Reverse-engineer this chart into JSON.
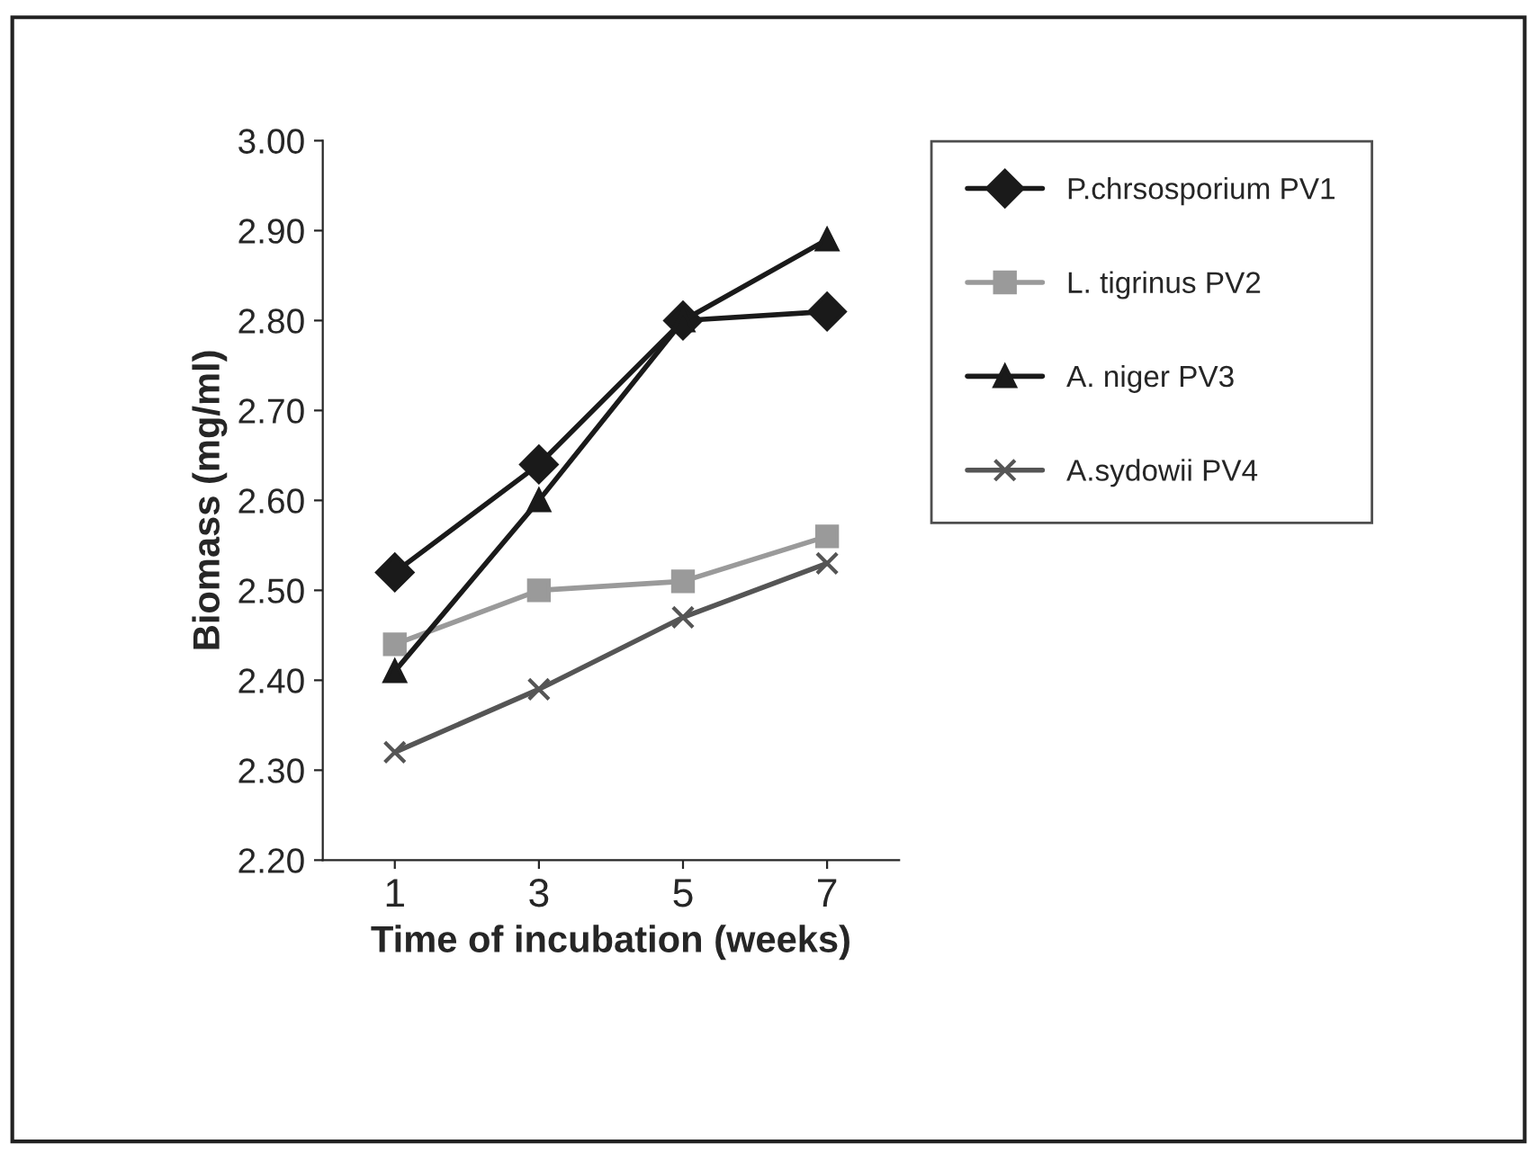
{
  "chart_data": {
    "type": "line",
    "xlabel": "Time of incubation (weeks)",
    "ylabel": "Biomass (mg/ml)",
    "categories": [
      "1",
      "3",
      "5",
      "7"
    ],
    "ylim": [
      2.2,
      3.0
    ],
    "yticks": [
      {
        "value": 2.2,
        "label": "2.20"
      },
      {
        "value": 2.3,
        "label": "2.30"
      },
      {
        "value": 2.4,
        "label": "2.40"
      },
      {
        "value": 2.5,
        "label": "2.50"
      },
      {
        "value": 2.6,
        "label": "2.60"
      },
      {
        "value": 2.7,
        "label": "2.70"
      },
      {
        "value": 2.8,
        "label": "2.80"
      },
      {
        "value": 2.9,
        "label": "2.90"
      },
      {
        "value": 3.0,
        "label": "3.00"
      }
    ],
    "grid": false,
    "legend": "right",
    "series": [
      {
        "name": "P.chrsosporium PV1",
        "color": "#1a1a1a",
        "marker": "diamond",
        "values": [
          2.52,
          2.64,
          2.8,
          2.81
        ]
      },
      {
        "name": "L. tigrinus PV2",
        "color": "#9a9a9a",
        "marker": "square",
        "values": [
          2.44,
          2.5,
          2.51,
          2.56
        ]
      },
      {
        "name": "A. niger PV3",
        "color": "#1a1a1a",
        "marker": "triangle",
        "values": [
          2.41,
          2.6,
          2.8,
          2.89
        ]
      },
      {
        "name": "A.sydowii PV4",
        "color": "#555555",
        "marker": "cross",
        "values": [
          2.32,
          2.39,
          2.47,
          2.53
        ]
      }
    ]
  }
}
